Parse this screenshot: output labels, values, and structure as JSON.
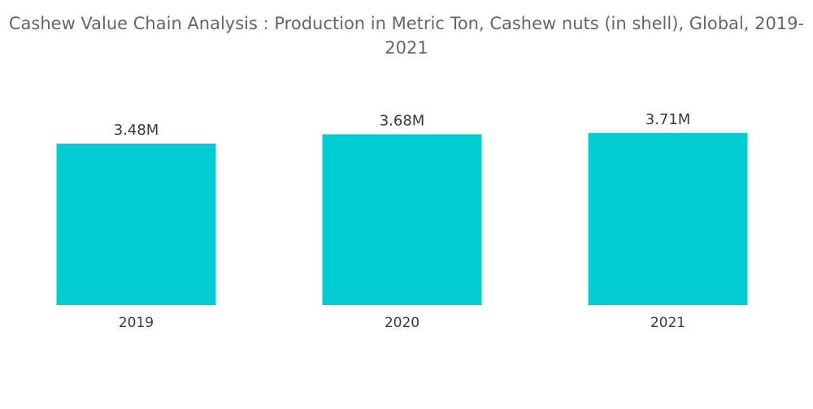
{
  "chart_data": {
    "type": "bar",
    "title": "Cashew Value Chain Analysis : Production in Metric Ton, Cashew nuts (in shell), Global, 2019-2021",
    "categories": [
      "2019",
      "2020",
      "2021"
    ],
    "values": [
      3.48,
      3.68,
      3.71
    ],
    "value_labels": [
      "3.48M",
      "3.68M",
      "3.71M"
    ],
    "ylim": [
      0,
      4.3
    ],
    "grid": false,
    "bar_color": "#00CCD2"
  }
}
